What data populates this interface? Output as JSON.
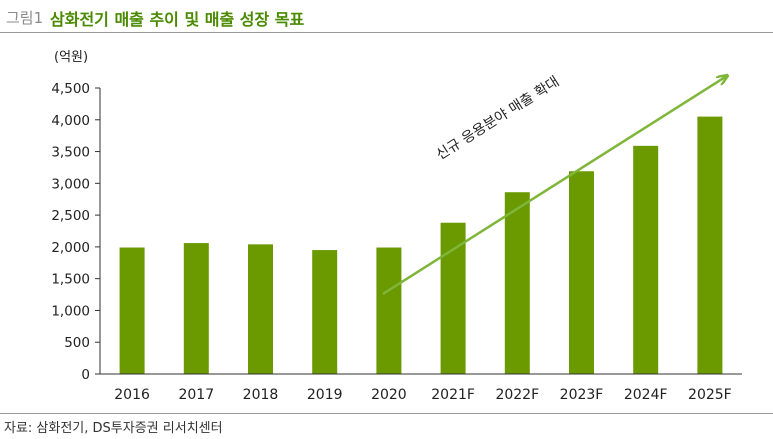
{
  "figure": {
    "label": "그림1",
    "title": "삼화전기 매출 추이 및 매출 성장 목표",
    "source": "자료: 삼화전기, DS투자증권 리서치센터"
  },
  "colors": {
    "bar": "#6a9a00",
    "arrow": "#7fb63a",
    "title": "#4a8a00"
  },
  "chart_data": {
    "type": "bar",
    "unit_label": "(억원)",
    "categories": [
      "2016",
      "2017",
      "2018",
      "2019",
      "2020",
      "2021F",
      "2022F",
      "2023F",
      "2024F",
      "2025F"
    ],
    "values": [
      1990,
      2060,
      2040,
      1950,
      1990,
      2380,
      2860,
      3190,
      3590,
      4050
    ],
    "ylim": [
      0,
      4500
    ],
    "yticks": [
      0,
      500,
      1000,
      1500,
      2000,
      2500,
      3000,
      3500,
      4000,
      4500
    ],
    "ytick_labels": [
      "0",
      "500",
      "1,000",
      "1,500",
      "2,000",
      "2,500",
      "3,000",
      "3,500",
      "4,000",
      "4,500"
    ],
    "grid": false,
    "annotation": {
      "text": "신규 응용분야 매출 확대",
      "type": "trend-arrow",
      "from_category": "2020",
      "to_category": "2025F"
    }
  }
}
